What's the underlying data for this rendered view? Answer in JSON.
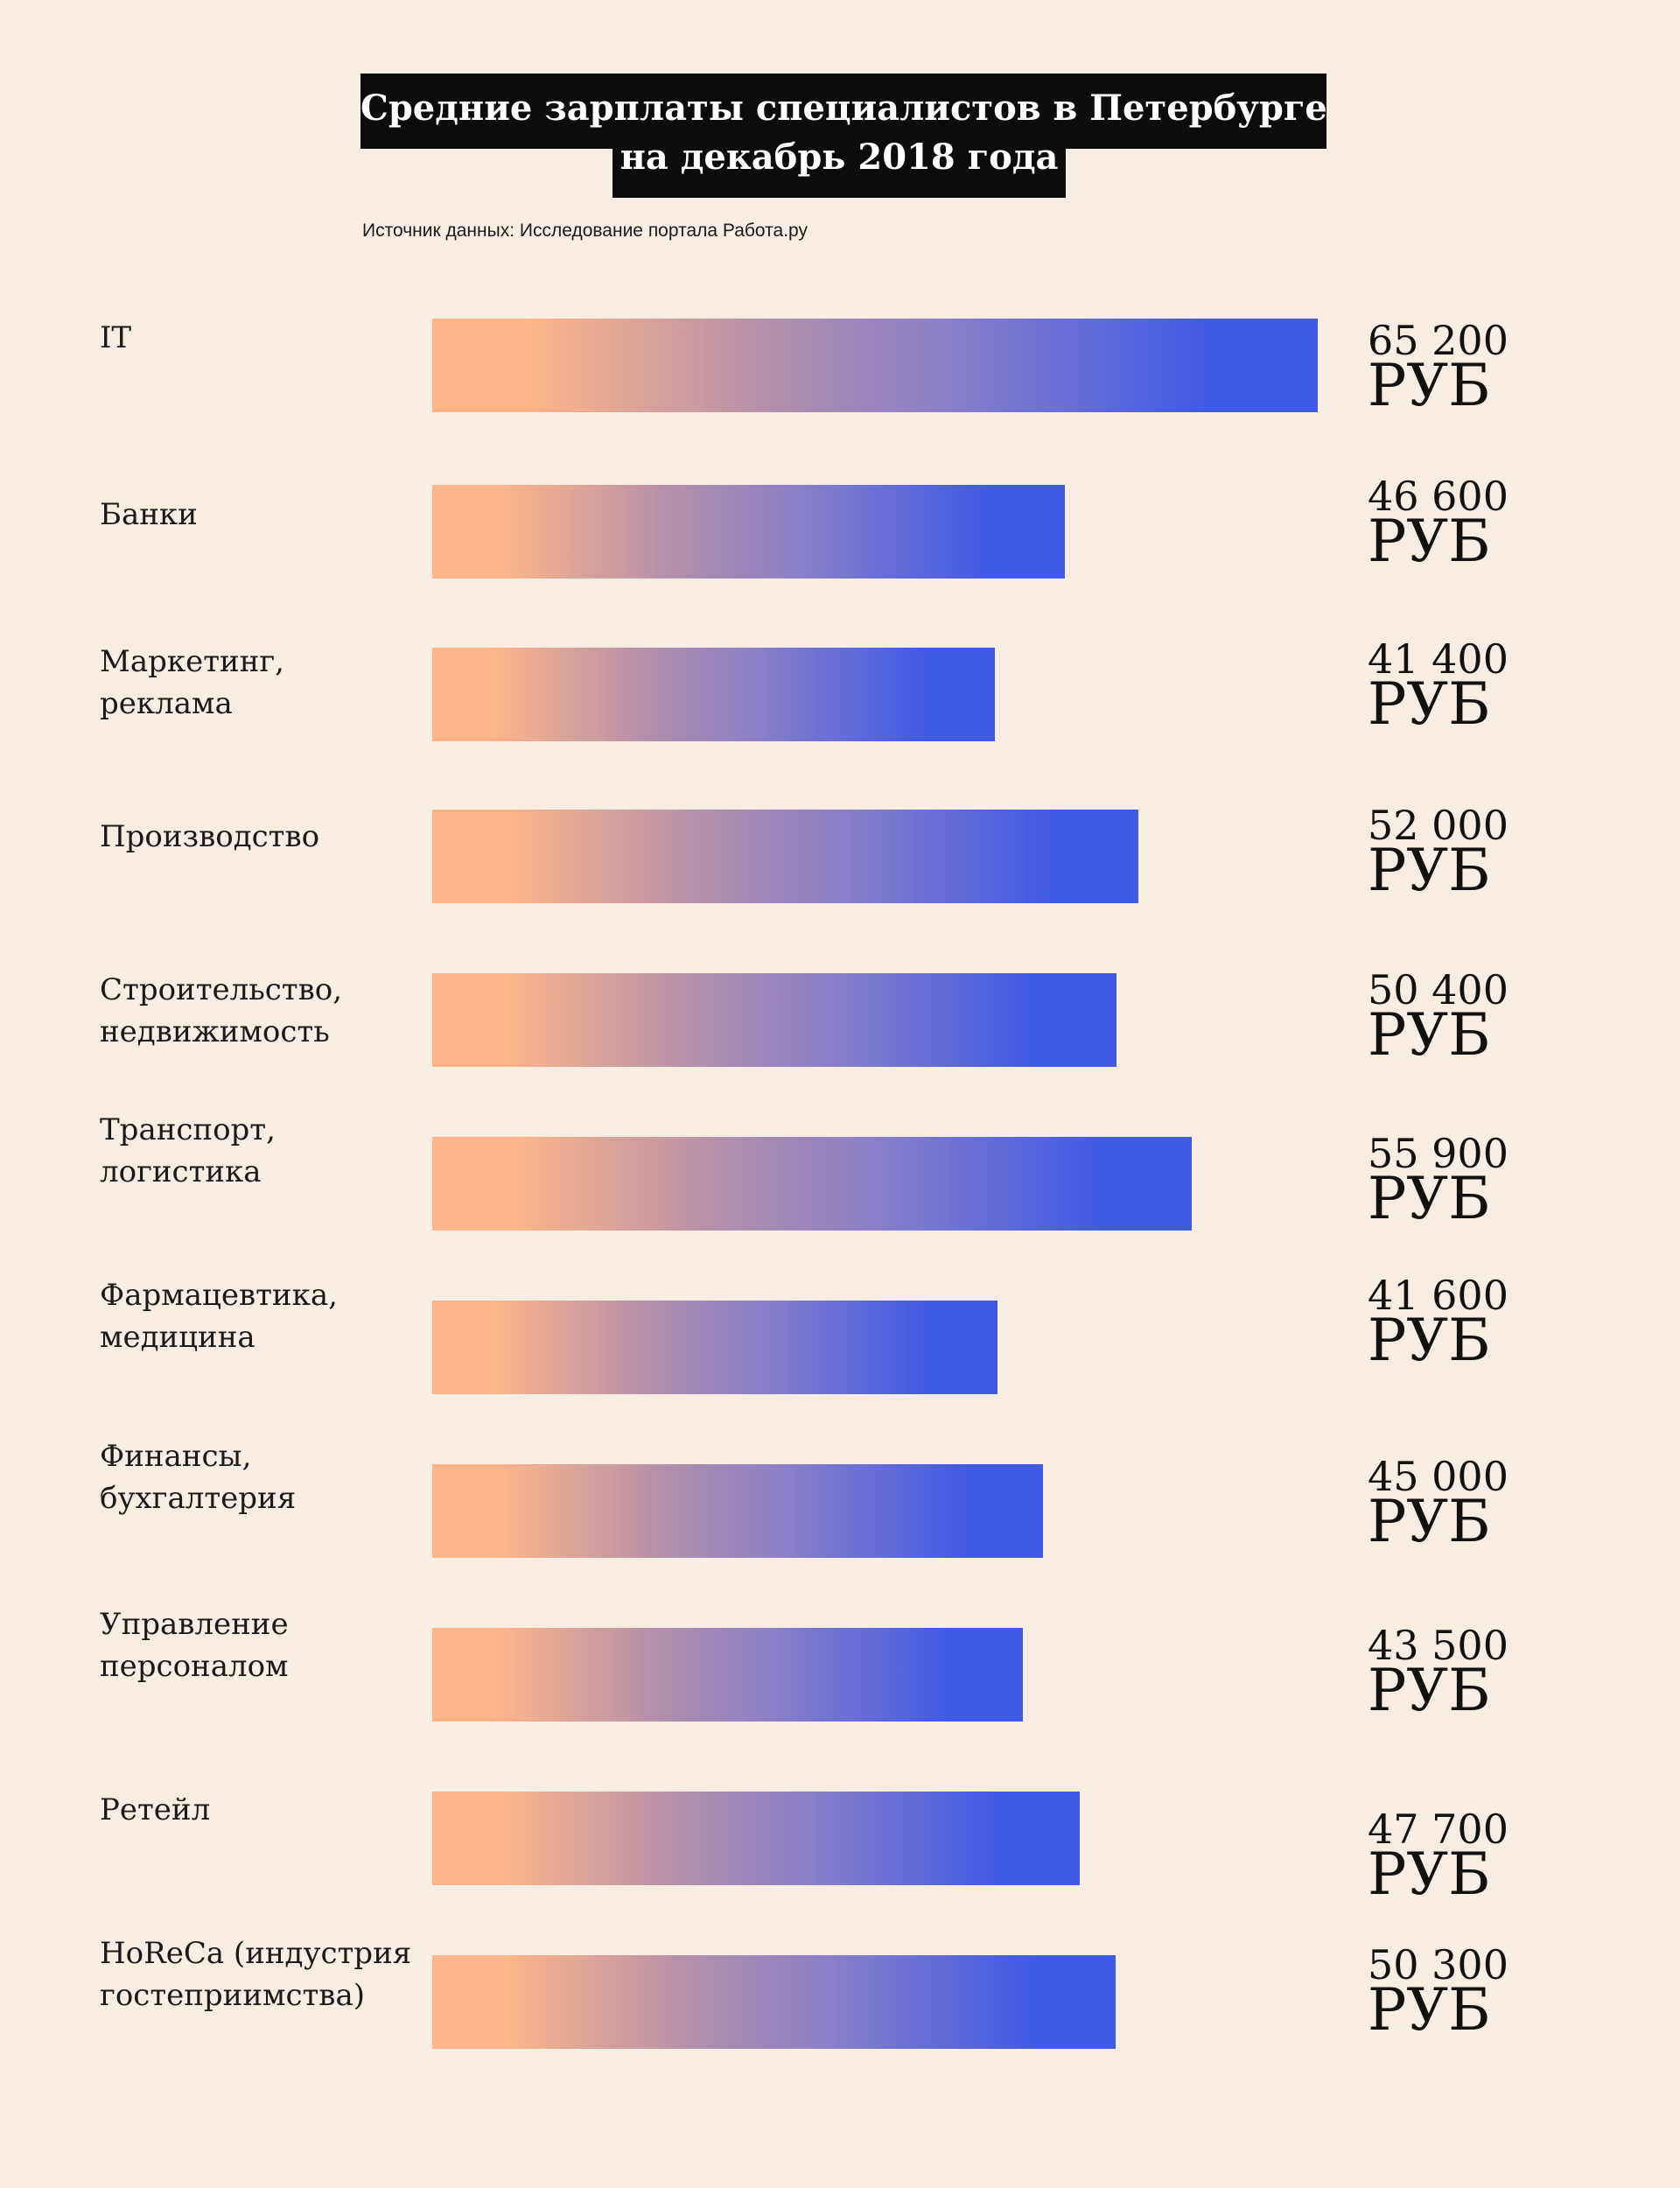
{
  "title": {
    "line1": "Средние зарплаты специалистов в Петербурге",
    "line2": "на декабрь 2018 года"
  },
  "source": "Источник данных: Исследование портала Работа.ру",
  "colors": {
    "background": "#f8ede2",
    "bar_start": "#fdb589",
    "bar_end": "#3f5ae6",
    "title_background": "#0c0c0c"
  },
  "chart_data": {
    "type": "bar",
    "orientation": "horizontal",
    "title": "Средние зарплаты специалистов в Петербурге на декабрь 2018 года",
    "categories": [
      "IT",
      "Банки",
      "Маркетинг,\nреклама",
      "Производство",
      "Строительство,\nнедвижимость",
      "Транспорт,\nлогистика",
      "Фармацевтика,\nмедицина",
      "Финансы,\nбухгалтерия",
      "Управление\nперсоналом",
      "Ретейл",
      "HoReCa (индустрия\nгостеприимства)"
    ],
    "values": [
      65200,
      46600,
      41400,
      52000,
      50400,
      55900,
      41600,
      45000,
      43500,
      47700,
      50300
    ],
    "value_labels": [
      "65 200",
      "46 600",
      "41 400",
      "52 000",
      "50 400",
      "55 900",
      "41 600",
      "45 000",
      "43 500",
      "47 700",
      "50 300"
    ],
    "unit": "РУБ",
    "xlim": [
      0,
      65200
    ],
    "grid": false,
    "legend": "none"
  }
}
